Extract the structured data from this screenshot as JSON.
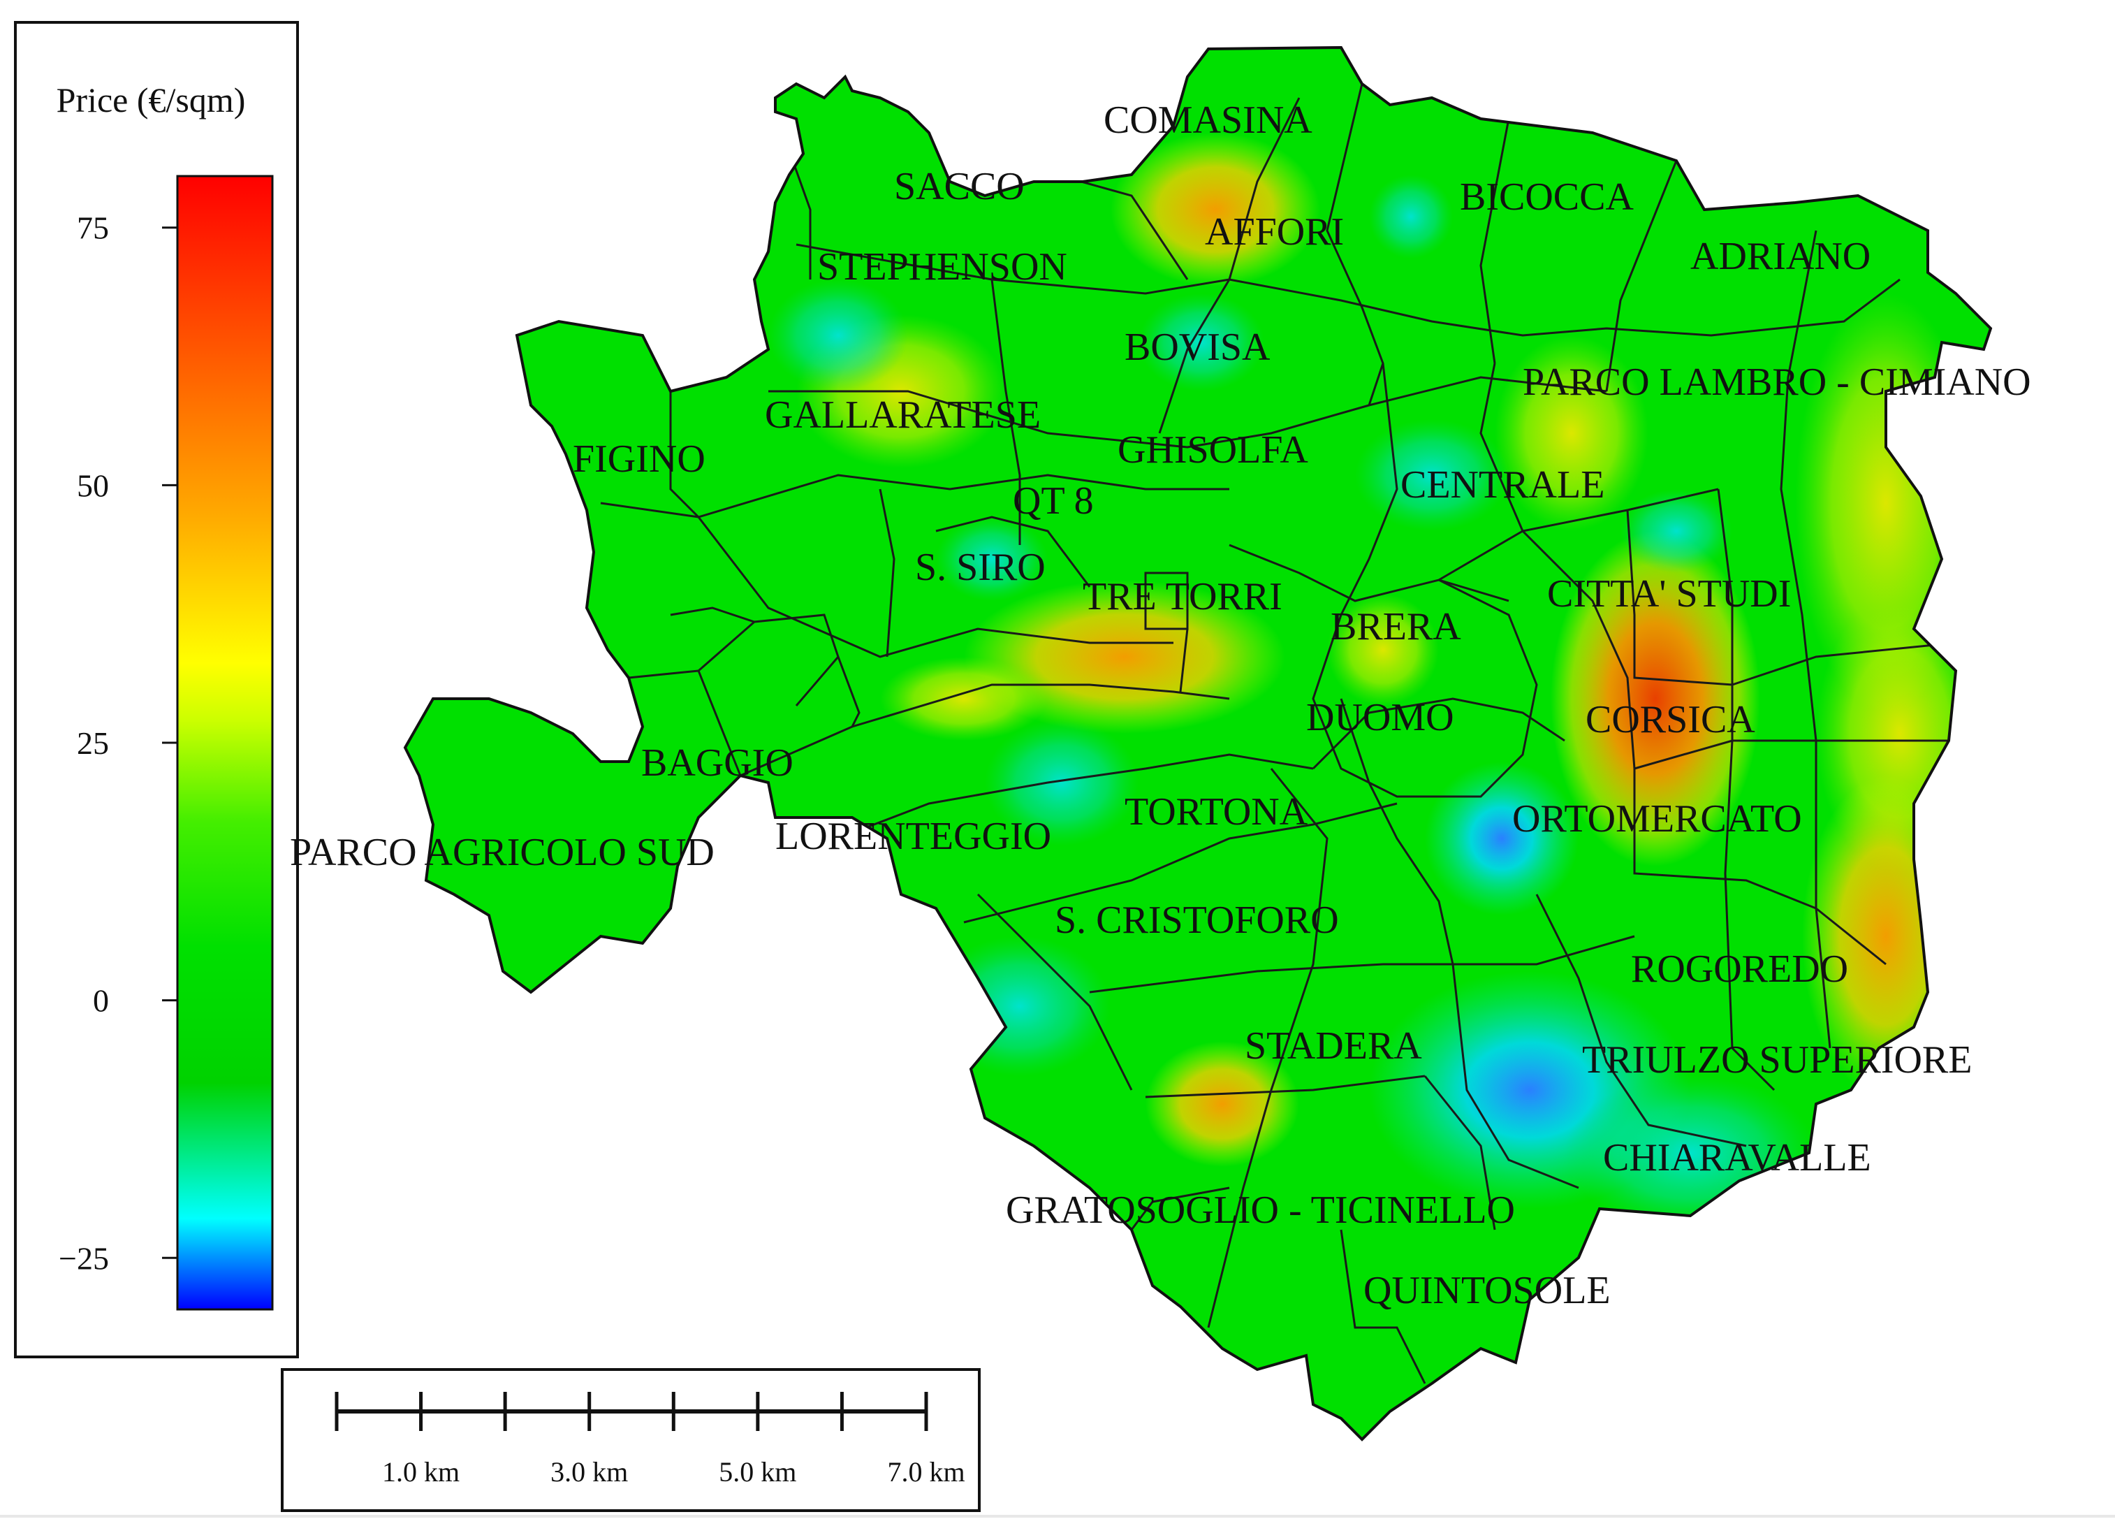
{
  "legend": {
    "title": "Price (€/sqm)",
    "ticks": [
      75,
      50,
      25,
      0,
      -25
    ],
    "range": [
      -30,
      80
    ],
    "colormap": [
      "#0000ff",
      "#00ffff",
      "#00e000",
      "#00cc00",
      "#ffff00",
      "#ff9900",
      "#ff0000"
    ]
  },
  "scale_bar": {
    "labels": [
      "1.0 km",
      "3.0 km",
      "5.0 km",
      "7.0 km"
    ],
    "segments_km": 7
  },
  "districts": [
    {
      "name": "COMASINA"
    },
    {
      "name": "SACCO"
    },
    {
      "name": "AFFORI"
    },
    {
      "name": "BICOCCA"
    },
    {
      "name": "STEPHENSON"
    },
    {
      "name": "ADRIANO"
    },
    {
      "name": "BOVISA"
    },
    {
      "name": "PARCO LAMBRO - CIMIANO"
    },
    {
      "name": "GALLARATESE"
    },
    {
      "name": "FIGINO"
    },
    {
      "name": "GHISOLFA"
    },
    {
      "name": "CENTRALE"
    },
    {
      "name": "QT 8"
    },
    {
      "name": "S. SIRO"
    },
    {
      "name": "TRE TORRI"
    },
    {
      "name": "CITTA' STUDI"
    },
    {
      "name": "BRERA"
    },
    {
      "name": "DUOMO"
    },
    {
      "name": "CORSICA"
    },
    {
      "name": "BAGGIO"
    },
    {
      "name": "TORTONA"
    },
    {
      "name": "ORTOMERCATO"
    },
    {
      "name": "LORENTEGGIO"
    },
    {
      "name": "PARCO AGRICOLO SUD"
    },
    {
      "name": "S. CRISTOFORO"
    },
    {
      "name": "ROGOREDO"
    },
    {
      "name": "STADERA"
    },
    {
      "name": "TRIULZO SUPERIORE"
    },
    {
      "name": "CHIARAVALLE"
    },
    {
      "name": "GRATOSOGLIO - TICINELLO"
    },
    {
      "name": "QUINTOSOLE"
    }
  ],
  "hotspots": [
    {
      "area": "CORSICA",
      "value": 55
    },
    {
      "area": "TRE TORRI",
      "value": 40
    },
    {
      "area": "AFFORI",
      "value": 30
    },
    {
      "area": "ROGOREDO",
      "value": 30
    },
    {
      "area": "STADERA",
      "value": 28
    },
    {
      "area": "ORTOMERCATO",
      "value": -25
    },
    {
      "area": "CHIARAVALLE",
      "value": -18
    },
    {
      "area": "STEPHENSON",
      "value": -15
    }
  ]
}
